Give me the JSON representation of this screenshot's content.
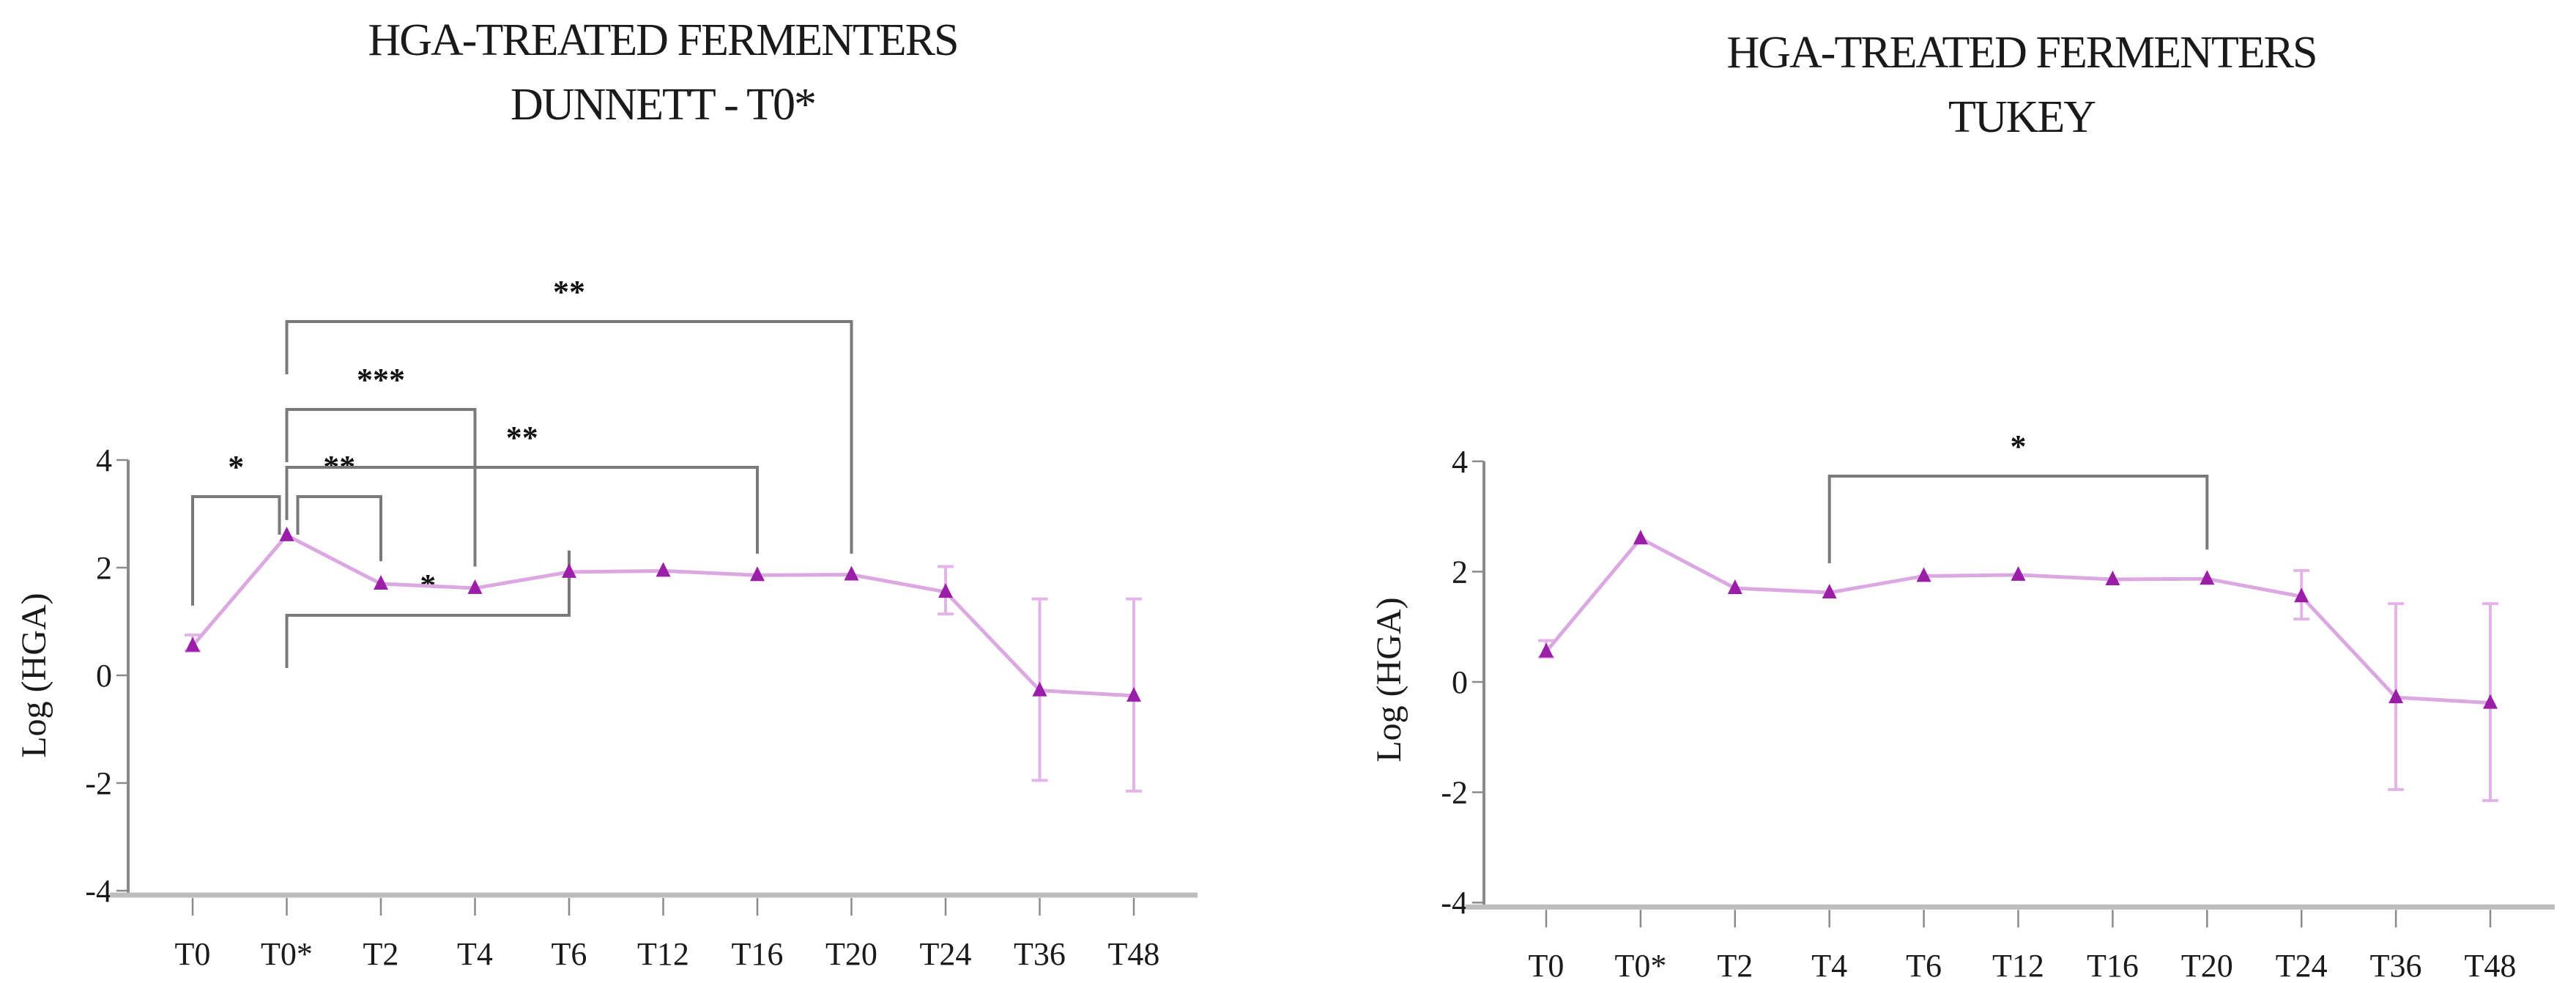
{
  "chart_data": [
    {
      "type": "line",
      "title": "HGA-TREATED FERMENTERS",
      "subtitle": "DUNNETT - T0*",
      "xlabel": "",
      "ylabel": "Log (HGA)",
      "ylim": [
        -4,
        4
      ],
      "yticks": [
        -4,
        -2,
        0,
        2,
        4
      ],
      "grid": false,
      "legend": null,
      "categories": [
        "T0",
        "T0*",
        "T2",
        "T4",
        "T6",
        "T12",
        "T16",
        "T20",
        "T24",
        "T36",
        "T48"
      ],
      "series": [
        {
          "name": "HGA-treated",
          "marker": "triangle",
          "color": "#9a1ea8",
          "line_color": "#dca8e2",
          "values": [
            0.55,
            2.6,
            1.7,
            1.62,
            1.92,
            1.94,
            1.86,
            1.87,
            1.55,
            -0.28,
            -0.38
          ],
          "error_low": [
            0.45,
            2.55,
            1.62,
            1.56,
            1.86,
            1.88,
            1.8,
            1.82,
            1.14,
            -1.95,
            -2.15
          ],
          "error_high": [
            0.75,
            2.65,
            1.78,
            1.68,
            1.98,
            2.0,
            1.92,
            1.92,
            2.02,
            1.42,
            1.42
          ]
        }
      ],
      "annotations": [
        {
          "from": "T0",
          "to": "T0*",
          "label": "*"
        },
        {
          "from": "T0*",
          "to": "T2",
          "label": "**"
        },
        {
          "from": "T0*",
          "to": "T4",
          "label": "***"
        },
        {
          "from": "T0*",
          "to": "T6",
          "label": "*"
        },
        {
          "from": "T0*",
          "to": "T16",
          "label": "**"
        },
        {
          "from": "T0*",
          "to": "T20",
          "label": "**"
        }
      ]
    },
    {
      "type": "line",
      "title": "HGA-TREATED FERMENTERS",
      "subtitle": "TUKEY",
      "xlabel": "",
      "ylabel": "Log (HGA)",
      "ylim": [
        -4,
        4
      ],
      "yticks": [
        -4,
        -2,
        0,
        2,
        4
      ],
      "grid": false,
      "legend": null,
      "categories": [
        "T0",
        "T0*",
        "T2",
        "T4",
        "T6",
        "T12",
        "T16",
        "T20",
        "T24",
        "T36",
        "T48"
      ],
      "series": [
        {
          "name": "HGA-treated",
          "marker": "triangle",
          "color": "#9a1ea8",
          "line_color": "#dca8e2",
          "values": [
            0.55,
            2.6,
            1.7,
            1.62,
            1.92,
            1.94,
            1.86,
            1.87,
            1.55,
            -0.28,
            -0.38
          ],
          "error_low": [
            0.45,
            2.55,
            1.62,
            1.56,
            1.86,
            1.88,
            1.8,
            1.82,
            1.14,
            -1.95,
            -2.15
          ],
          "error_high": [
            0.75,
            2.65,
            1.78,
            1.68,
            1.98,
            2.0,
            1.92,
            1.92,
            2.02,
            1.42,
            1.42
          ]
        }
      ],
      "annotations": [
        {
          "from": "T4",
          "to": "T20",
          "label": "*"
        }
      ]
    }
  ],
  "panels": {
    "left": {
      "title_line1": "HGA-TREATED FERMENTERS",
      "title_line2": "DUNNETT - T0*",
      "ylabel": "Log (HGA)"
    },
    "right": {
      "title_line1": "HGA-TREATED FERMENTERS",
      "title_line2": "TUKEY",
      "ylabel": "Log (HGA)"
    }
  }
}
